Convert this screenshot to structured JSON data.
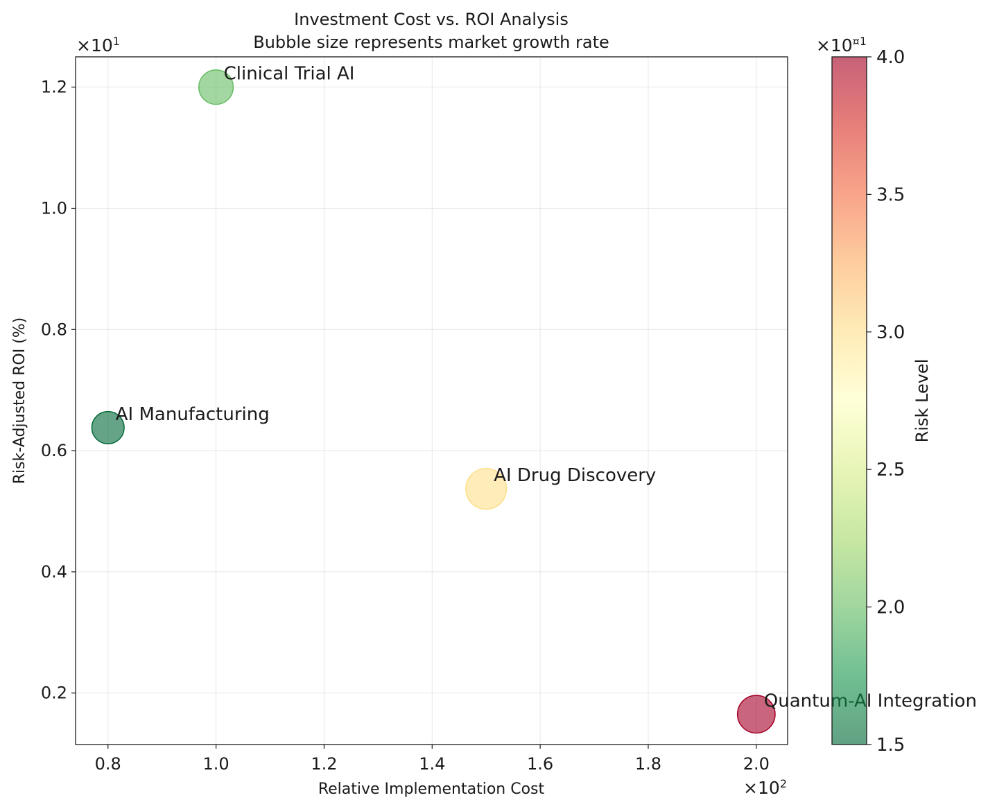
{
  "chart_data": {
    "type": "scatter",
    "title": "Investment Cost vs. ROI Analysis",
    "subtitle": "Bubble size represents market growth rate",
    "xlabel": "Relative Implementation Cost",
    "ylabel": "Risk-Adjusted ROI (%)",
    "x_multiplier": "×10",
    "x_multiplier_exp": "2",
    "y_multiplier": "×10",
    "y_multiplier_exp": "1",
    "xlim": [
      74.0,
      205.8
    ],
    "ylim": [
      1.15,
      12.5
    ],
    "xticks": [
      80,
      100,
      120,
      140,
      160,
      180,
      200
    ],
    "xtick_labels": [
      "0.8",
      "1.0",
      "1.2",
      "1.4",
      "1.6",
      "1.8",
      "2.0"
    ],
    "yticks": [
      2,
      4,
      6,
      8,
      10,
      12
    ],
    "ytick_labels": [
      "0.2",
      "0.4",
      "0.6",
      "0.8",
      "1.0",
      "1.2"
    ],
    "grid": true,
    "points": [
      {
        "label": "AI Manufacturing",
        "x": 80,
        "y": 6.38,
        "risk": 15,
        "growth": 22
      },
      {
        "label": "Clinical Trial AI",
        "x": 100,
        "y": 12.0,
        "risk": 20,
        "growth": 25
      },
      {
        "label": "AI Drug Discovery",
        "x": 150,
        "y": 5.37,
        "risk": 30,
        "growth": 35
      },
      {
        "label": "Quantum-AI Integration",
        "x": 200,
        "y": 1.65,
        "risk": 40,
        "growth": 30
      }
    ],
    "colorbar": {
      "label": "Risk Level",
      "min": 15,
      "max": 40,
      "multiplier": "×10",
      "multiplier_exp": "¤1",
      "ticks": [
        15,
        20,
        25,
        30,
        35,
        40
      ],
      "tick_labels": [
        "1.5",
        "2.0",
        "2.5",
        "3.0",
        "3.5",
        "4.0"
      ],
      "colormap": "RdYlGn_r",
      "colors": [
        "#006837",
        "#1a9850",
        "#66bd63",
        "#a6d96a",
        "#d9ef8b",
        "#ffffbf",
        "#fee08b",
        "#fdae61",
        "#f46d43",
        "#d73027",
        "#a50026"
      ]
    }
  }
}
